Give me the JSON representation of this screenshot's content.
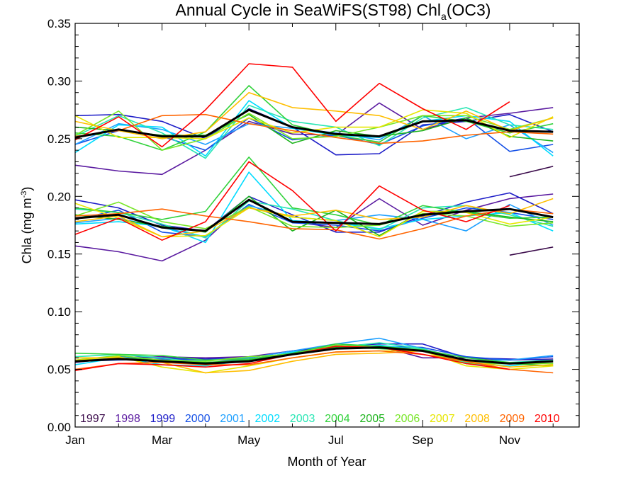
{
  "chart_data": {
    "type": "line",
    "title": "Annual Cycle in SeaWiFS(ST98) Chl",
    "title_sub": "a",
    "title_end": "(OC3)",
    "xlabel": "Month of Year",
    "ylabel_main": "Chla (mg m",
    "ylabel_sup": "-3",
    "ylabel_end": ")",
    "xlim": [
      1,
      12.6
    ],
    "ylim": [
      0,
      0.35
    ],
    "x_ticks": [
      {
        "x": 1,
        "label": "Jan"
      },
      {
        "x": 3,
        "label": "Mar"
      },
      {
        "x": 5,
        "label": "May"
      },
      {
        "x": 7,
        "label": "Jul"
      },
      {
        "x": 9,
        "label": "Sep"
      },
      {
        "x": 11,
        "label": "Nov"
      }
    ],
    "y_ticks": [
      {
        "y": 0.0,
        "label": "0.00"
      },
      {
        "y": 0.05,
        "label": "0.05"
      },
      {
        "y": 0.1,
        "label": "0.10"
      },
      {
        "y": 0.15,
        "label": "0.15"
      },
      {
        "y": 0.2,
        "label": "0.20"
      },
      {
        "y": 0.25,
        "label": "0.25"
      },
      {
        "y": 0.3,
        "label": "0.30"
      },
      {
        "y": 0.35,
        "label": "0.35"
      }
    ],
    "legend": {
      "placement": "bottom inside plot"
    },
    "x": [
      1,
      2,
      3,
      4,
      5,
      6,
      7,
      8,
      9,
      10,
      11,
      12
    ],
    "series": [
      {
        "name": "1997",
        "color": "#3a0a4a",
        "upper": [
          null,
          null,
          null,
          null,
          null,
          null,
          null,
          null,
          null,
          null,
          0.217,
          0.226
        ],
        "middle": [
          null,
          null,
          null,
          null,
          null,
          null,
          null,
          null,
          null,
          null,
          0.149,
          0.156
        ],
        "lower": [
          null,
          null,
          null,
          null,
          null,
          null,
          null,
          null,
          null,
          null,
          null,
          null
        ]
      },
      {
        "name": "1998",
        "color": "#5a1aa0",
        "upper": [
          0.227,
          0.222,
          0.219,
          0.24,
          0.265,
          0.254,
          0.253,
          0.281,
          0.258,
          0.268,
          0.272,
          0.277
        ],
        "middle": [
          0.157,
          0.152,
          0.144,
          0.162,
          0.197,
          0.178,
          0.173,
          0.198,
          0.175,
          0.188,
          0.198,
          0.202
        ],
        "lower": [
          0.056,
          0.06,
          0.061,
          0.06,
          0.061,
          0.066,
          0.07,
          0.07,
          0.06,
          0.06,
          0.058,
          0.059
        ]
      },
      {
        "name": "1999",
        "color": "#1e1ec8",
        "upper": [
          0.27,
          0.271,
          0.265,
          0.25,
          0.276,
          0.26,
          0.236,
          0.237,
          0.262,
          0.265,
          0.271,
          0.256
        ],
        "middle": [
          0.197,
          0.19,
          0.175,
          0.17,
          0.2,
          0.184,
          0.169,
          0.169,
          0.183,
          0.195,
          0.203,
          0.185
        ],
        "lower": [
          0.058,
          0.061,
          0.06,
          0.059,
          0.06,
          0.066,
          0.07,
          0.072,
          0.072,
          0.06,
          0.059,
          0.058
        ]
      },
      {
        "name": "2000",
        "color": "#1450e6",
        "upper": [
          0.245,
          0.257,
          0.252,
          0.24,
          0.268,
          0.249,
          0.253,
          0.245,
          0.261,
          0.268,
          0.239,
          0.245
        ],
        "middle": [
          0.18,
          0.188,
          0.169,
          0.165,
          0.193,
          0.177,
          0.175,
          0.17,
          0.181,
          0.19,
          0.186,
          0.18
        ],
        "lower": [
          0.057,
          0.058,
          0.059,
          0.058,
          0.058,
          0.064,
          0.069,
          0.07,
          0.069,
          0.061,
          0.058,
          0.061
        ]
      },
      {
        "name": "2001",
        "color": "#1ea0ff",
        "upper": [
          0.245,
          0.263,
          0.258,
          0.245,
          0.263,
          0.259,
          0.255,
          0.249,
          0.27,
          0.25,
          0.262,
          0.238
        ],
        "middle": [
          0.177,
          0.181,
          0.173,
          0.165,
          0.192,
          0.182,
          0.179,
          0.184,
          0.18,
          0.17,
          0.193,
          0.175
        ],
        "lower": [
          0.057,
          0.061,
          0.057,
          0.058,
          0.06,
          0.066,
          0.072,
          0.077,
          0.068,
          0.058,
          0.058,
          0.062
        ]
      },
      {
        "name": "2002",
        "color": "#00dcff",
        "upper": [
          0.238,
          0.262,
          0.26,
          0.235,
          0.283,
          0.259,
          0.253,
          0.251,
          0.265,
          0.27,
          0.265,
          0.235
        ],
        "middle": [
          0.176,
          0.178,
          0.174,
          0.16,
          0.221,
          0.179,
          0.177,
          0.172,
          0.18,
          0.183,
          0.186,
          0.17
        ],
        "lower": [
          0.054,
          0.06,
          0.054,
          0.053,
          0.058,
          0.065,
          0.068,
          0.071,
          0.067,
          0.055,
          0.053,
          0.057
        ]
      },
      {
        "name": "2003",
        "color": "#28e6b4",
        "upper": [
          0.252,
          0.27,
          0.255,
          0.233,
          0.279,
          0.265,
          0.26,
          0.244,
          0.268,
          0.277,
          0.262,
          0.258
        ],
        "middle": [
          0.189,
          0.186,
          0.176,
          0.164,
          0.196,
          0.189,
          0.179,
          0.171,
          0.19,
          0.192,
          0.184,
          0.174
        ],
        "lower": [
          0.061,
          0.063,
          0.06,
          0.055,
          0.057,
          0.063,
          0.069,
          0.073,
          0.068,
          0.056,
          0.056,
          0.058
        ]
      },
      {
        "name": "2004",
        "color": "#32d23c",
        "upper": [
          0.255,
          0.252,
          0.24,
          0.256,
          0.296,
          0.262,
          0.253,
          0.247,
          0.27,
          0.265,
          0.255,
          0.263
        ],
        "middle": [
          0.19,
          0.186,
          0.18,
          0.187,
          0.234,
          0.19,
          0.184,
          0.175,
          0.192,
          0.186,
          0.181,
          0.182
        ],
        "lower": [
          0.064,
          0.063,
          0.062,
          0.058,
          0.059,
          0.064,
          0.072,
          0.07,
          0.067,
          0.06,
          0.056,
          0.055
        ]
      },
      {
        "name": "2005",
        "color": "#1eb41e",
        "upper": [
          0.26,
          0.257,
          0.253,
          0.253,
          0.271,
          0.246,
          0.257,
          0.252,
          0.257,
          0.268,
          0.252,
          0.248
        ],
        "middle": [
          0.184,
          0.18,
          0.174,
          0.169,
          0.2,
          0.17,
          0.188,
          0.166,
          0.187,
          0.187,
          0.182,
          0.178
        ],
        "lower": [
          0.06,
          0.06,
          0.058,
          0.056,
          0.058,
          0.063,
          0.069,
          0.068,
          0.066,
          0.055,
          0.055,
          0.053
        ]
      },
      {
        "name": "2006",
        "color": "#78e628",
        "upper": [
          0.253,
          0.274,
          0.24,
          0.25,
          0.272,
          0.25,
          0.252,
          0.26,
          0.27,
          0.27,
          0.258,
          0.268
        ],
        "middle": [
          0.183,
          0.195,
          0.178,
          0.172,
          0.191,
          0.174,
          0.173,
          0.175,
          0.185,
          0.183,
          0.174,
          0.177
        ],
        "lower": [
          0.058,
          0.062,
          0.058,
          0.057,
          0.061,
          0.063,
          0.071,
          0.069,
          0.066,
          0.055,
          0.055,
          0.055
        ]
      },
      {
        "name": "2007",
        "color": "#e6e600",
        "upper": [
          0.27,
          0.251,
          0.251,
          0.25,
          0.268,
          0.255,
          0.26,
          0.26,
          0.275,
          0.272,
          0.251,
          0.269
        ],
        "middle": [
          0.194,
          0.181,
          0.165,
          0.166,
          0.19,
          0.182,
          0.179,
          0.165,
          0.187,
          0.186,
          0.176,
          0.182
        ],
        "lower": [
          0.058,
          0.061,
          0.052,
          0.047,
          0.053,
          0.06,
          0.065,
          0.066,
          0.066,
          0.053,
          0.05,
          0.053
        ]
      },
      {
        "name": "2008",
        "color": "#ffbe00",
        "upper": [
          0.265,
          0.257,
          0.25,
          0.256,
          0.29,
          0.277,
          0.274,
          0.27,
          0.258,
          0.274,
          0.257,
          0.268
        ],
        "middle": [
          0.178,
          0.183,
          0.165,
          0.17,
          0.19,
          0.183,
          0.188,
          0.18,
          0.182,
          0.192,
          0.185,
          0.198
        ],
        "lower": [
          0.06,
          0.06,
          0.056,
          0.047,
          0.049,
          0.057,
          0.063,
          0.064,
          0.066,
          0.057,
          0.052,
          0.054
        ]
      },
      {
        "name": "2009",
        "color": "#ff6400",
        "upper": [
          0.252,
          0.257,
          0.27,
          0.271,
          0.263,
          0.257,
          0.251,
          0.246,
          0.248,
          0.253,
          0.256,
          0.254
        ],
        "middle": [
          0.183,
          0.185,
          0.189,
          0.183,
          0.178,
          0.172,
          0.171,
          0.163,
          0.172,
          0.183,
          0.189,
          0.185
        ],
        "lower": [
          0.05,
          0.055,
          0.056,
          0.054,
          0.054,
          0.06,
          0.065,
          0.066,
          0.063,
          0.057,
          0.05,
          0.047
        ]
      },
      {
        "name": "2010",
        "color": "#ff0000",
        "upper": [
          0.249,
          0.269,
          0.243,
          0.275,
          0.315,
          0.312,
          0.265,
          0.298,
          0.276,
          0.258,
          0.282,
          null
        ],
        "middle": [
          0.167,
          0.181,
          0.162,
          0.178,
          0.23,
          0.205,
          0.17,
          0.209,
          0.188,
          0.178,
          0.192,
          null
        ],
        "lower": [
          0.049,
          0.055,
          0.054,
          0.052,
          0.055,
          0.063,
          0.07,
          0.069,
          0.063,
          0.055,
          0.05,
          null
        ]
      },
      {
        "name": "",
        "color": "#000000",
        "mean": true,
        "upper": [
          0.251,
          0.258,
          0.252,
          0.252,
          0.275,
          0.26,
          0.254,
          0.252,
          0.265,
          0.266,
          0.257,
          0.256
        ],
        "middle": [
          0.181,
          0.184,
          0.173,
          0.17,
          0.197,
          0.178,
          0.177,
          0.176,
          0.184,
          0.187,
          0.189,
          0.182
        ],
        "lower": [
          0.057,
          0.059,
          0.057,
          0.055,
          0.057,
          0.063,
          0.068,
          0.069,
          0.066,
          0.058,
          0.055,
          0.057
        ]
      }
    ]
  }
}
